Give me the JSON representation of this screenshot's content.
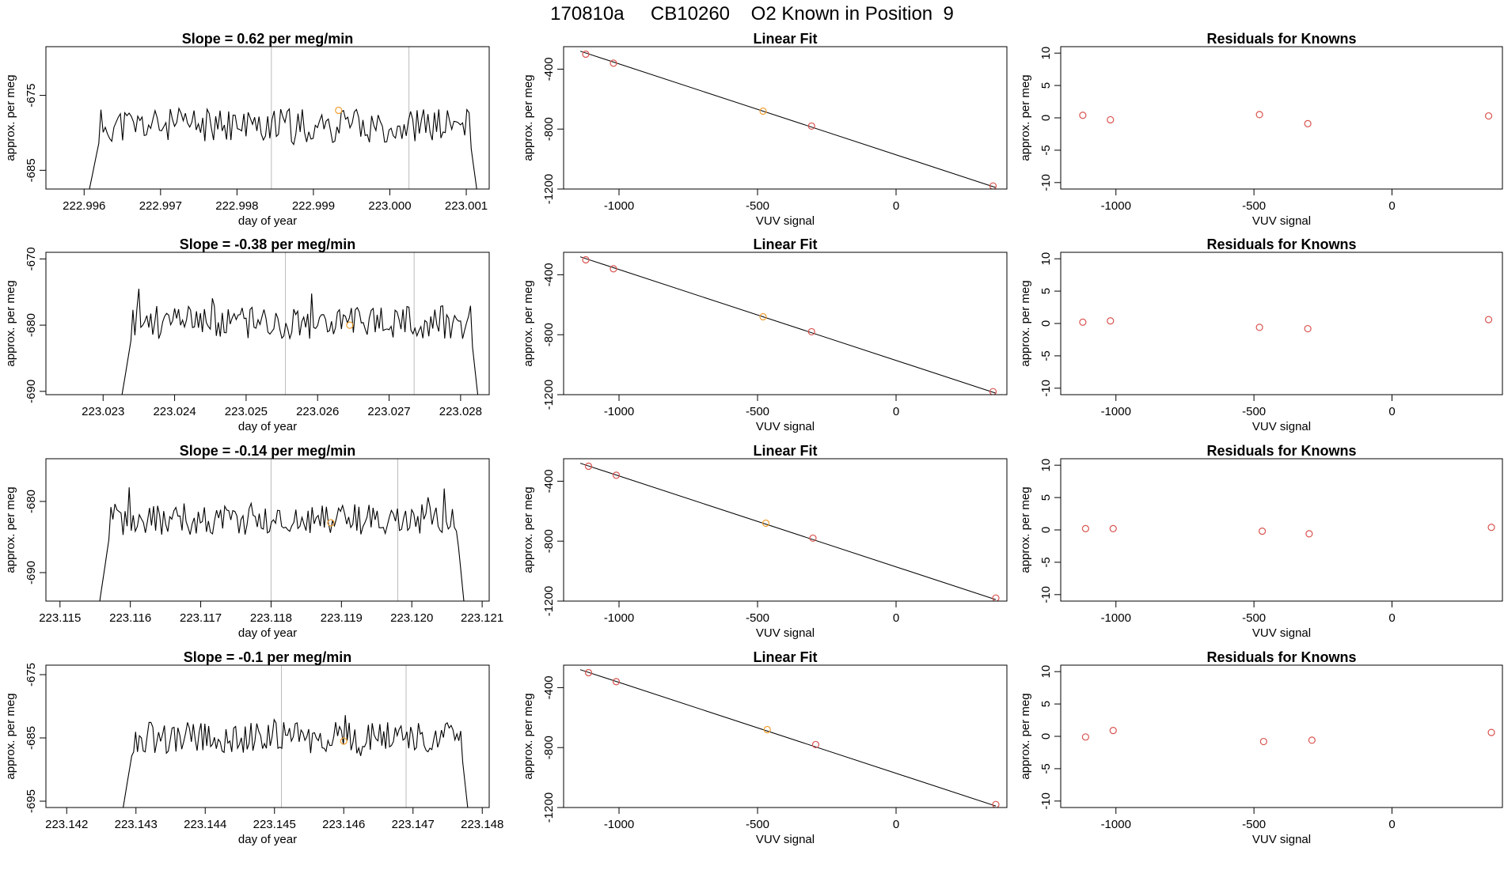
{
  "page": {
    "title": "170810a     CB10260    O2 Known in Position  9"
  },
  "colors": {
    "line": "#000000",
    "known": "#d9534f",
    "sample": "#f0a030",
    "grid": "#bbbbbb",
    "frame": "#000000"
  },
  "chart_data": {
    "type": "figure",
    "rows": [
      {
        "timeseries": {
          "type": "line",
          "title": "Slope =  0.62  per meg/min",
          "xlabel": "day of year",
          "ylabel": "approx. per meg",
          "xlim": [
            222.9955,
            223.0013
          ],
          "ylim": [
            -687.5,
            -668.5
          ],
          "xticks": [
            222.996,
            222.997,
            222.998,
            222.999,
            223.0,
            223.001
          ],
          "xtick_labels": [
            "222.996",
            "222.997",
            "222.998",
            "222.999",
            "223.000",
            "223.001"
          ],
          "yticks": [
            -675,
            -685
          ],
          "ytick_labels": [
            "-675",
            "-685"
          ],
          "vlines": [
            222.99845,
            223.00025
          ],
          "x_start": 222.99605,
          "x_end": 223.00115,
          "level": -679,
          "noise": 2.3,
          "seed": 11,
          "point": {
            "x": 222.99933,
            "y": -677
          }
        },
        "fit": {
          "type": "scatter",
          "title": "Linear Fit",
          "xlabel": "VUV signal",
          "ylabel": "approx. per meg",
          "xlim": [
            -1200,
            400
          ],
          "ylim": [
            -1200,
            -250
          ],
          "xticks": [
            -1000,
            -500,
            0
          ],
          "xtick_labels": [
            "-1000",
            "-500",
            "0"
          ],
          "yticks": [
            -400,
            -800,
            -1200
          ],
          "ytick_labels": [
            "-400",
            "-800",
            "-1200"
          ],
          "line": {
            "x1": -1140,
            "y1": -280,
            "x2": 360,
            "y2": -1190
          },
          "points": [
            {
              "x": -1120,
              "y": -300,
              "kind": "known"
            },
            {
              "x": -1020,
              "y": -360,
              "kind": "known"
            },
            {
              "x": -480,
              "y": -680,
              "kind": "sample"
            },
            {
              "x": -305,
              "y": -780,
              "kind": "known"
            },
            {
              "x": 350,
              "y": -1180,
              "kind": "known"
            }
          ]
        },
        "residuals": {
          "type": "scatter",
          "title": "Residuals for Knowns",
          "xlabel": "VUV signal",
          "ylabel": "approx. per meg",
          "xlim": [
            -1200,
            400
          ],
          "ylim": [
            -11,
            11
          ],
          "xticks": [
            -1000,
            -500,
            0
          ],
          "xtick_labels": [
            "-1000",
            "-500",
            "0"
          ],
          "yticks": [
            10,
            5,
            0,
            -5,
            -10
          ],
          "ytick_labels": [
            "10",
            "5",
            "0",
            "-5",
            "-10"
          ],
          "points": [
            {
              "x": -1120,
              "y": 0.4
            },
            {
              "x": -1020,
              "y": -0.3
            },
            {
              "x": -480,
              "y": 0.5
            },
            {
              "x": -305,
              "y": -0.9
            },
            {
              "x": 350,
              "y": 0.3
            }
          ]
        }
      },
      {
        "timeseries": {
          "type": "line",
          "title": "Slope =  -0.38  per meg/min",
          "xlabel": "day of year",
          "ylabel": "approx. per meg",
          "xlim": [
            223.0222,
            223.0284
          ],
          "ylim": [
            -690.5,
            -669
          ],
          "xticks": [
            223.023,
            223.024,
            223.025,
            223.026,
            223.027,
            223.028
          ],
          "xtick_labels": [
            "223.023",
            "223.024",
            "223.025",
            "223.026",
            "223.027",
            "223.028"
          ],
          "yticks": [
            -670,
            -680,
            -690
          ],
          "ytick_labels": [
            "-670",
            "-680",
            "-690"
          ],
          "vlines": [
            223.02555,
            223.02735
          ],
          "x_start": 223.02325,
          "x_end": 223.02825,
          "level": -679.5,
          "noise": 2.6,
          "seed": 23,
          "point": {
            "x": 223.02645,
            "y": -680
          }
        },
        "fit": {
          "type": "scatter",
          "title": "Linear Fit",
          "xlabel": "VUV signal",
          "ylabel": "approx. per meg",
          "xlim": [
            -1200,
            400
          ],
          "ylim": [
            -1200,
            -250
          ],
          "xticks": [
            -1000,
            -500,
            0
          ],
          "xtick_labels": [
            "-1000",
            "-500",
            "0"
          ],
          "yticks": [
            -400,
            -800,
            -1200
          ],
          "ytick_labels": [
            "-400",
            "-800",
            "-1200"
          ],
          "line": {
            "x1": -1140,
            "y1": -280,
            "x2": 360,
            "y2": -1190
          },
          "points": [
            {
              "x": -1120,
              "y": -300,
              "kind": "known"
            },
            {
              "x": -1020,
              "y": -360,
              "kind": "known"
            },
            {
              "x": -480,
              "y": -680,
              "kind": "sample"
            },
            {
              "x": -305,
              "y": -780,
              "kind": "known"
            },
            {
              "x": 350,
              "y": -1180,
              "kind": "known"
            }
          ]
        },
        "residuals": {
          "type": "scatter",
          "title": "Residuals for Knowns",
          "xlabel": "VUV signal",
          "ylabel": "approx. per meg",
          "xlim": [
            -1200,
            400
          ],
          "ylim": [
            -11,
            11
          ],
          "xticks": [
            -1000,
            -500,
            0
          ],
          "xtick_labels": [
            "-1000",
            "-500",
            "0"
          ],
          "yticks": [
            10,
            5,
            0,
            -5,
            -10
          ],
          "ytick_labels": [
            "10",
            "5",
            "0",
            "-5",
            "-10"
          ],
          "points": [
            {
              "x": -1120,
              "y": 0.2
            },
            {
              "x": -1020,
              "y": 0.4
            },
            {
              "x": -480,
              "y": -0.6
            },
            {
              "x": -305,
              "y": -0.8
            },
            {
              "x": 350,
              "y": 0.6
            }
          ]
        }
      },
      {
        "timeseries": {
          "type": "line",
          "title": "Slope =  -0.14  per meg/min",
          "xlabel": "day of year",
          "ylabel": "approx. per meg",
          "xlim": [
            223.1148,
            223.1211
          ],
          "ylim": [
            -694,
            -674
          ],
          "xticks": [
            223.115,
            223.116,
            223.117,
            223.118,
            223.119,
            223.12,
            223.121
          ],
          "xtick_labels": [
            "223.115",
            "223.116",
            "223.117",
            "223.118",
            "223.119",
            "223.120",
            "223.121"
          ],
          "yticks": [
            -680,
            -690
          ],
          "ytick_labels": [
            "-680",
            "-690"
          ],
          "vlines": [
            223.118,
            223.1198
          ],
          "x_start": 223.11555,
          "x_end": 223.12075,
          "level": -682.5,
          "noise": 2.3,
          "seed": 37,
          "point": {
            "x": 223.11885,
            "y": -683
          }
        },
        "fit": {
          "type": "scatter",
          "title": "Linear Fit",
          "xlabel": "VUV signal",
          "ylabel": "approx. per meg",
          "xlim": [
            -1200,
            400
          ],
          "ylim": [
            -1200,
            -250
          ],
          "xticks": [
            -1000,
            -500,
            0
          ],
          "xtick_labels": [
            "-1000",
            "-500",
            "0"
          ],
          "yticks": [
            -400,
            -800,
            -1200
          ],
          "ytick_labels": [
            "-400",
            "-800",
            "-1200"
          ],
          "line": {
            "x1": -1140,
            "y1": -280,
            "x2": 360,
            "y2": -1190
          },
          "points": [
            {
              "x": -1110,
              "y": -300,
              "kind": "known"
            },
            {
              "x": -1010,
              "y": -360,
              "kind": "known"
            },
            {
              "x": -470,
              "y": -680,
              "kind": "sample"
            },
            {
              "x": -300,
              "y": -780,
              "kind": "known"
            },
            {
              "x": 360,
              "y": -1180,
              "kind": "known"
            }
          ]
        },
        "residuals": {
          "type": "scatter",
          "title": "Residuals for Knowns",
          "xlabel": "VUV signal",
          "ylabel": "approx. per meg",
          "xlim": [
            -1200,
            400
          ],
          "ylim": [
            -11,
            11
          ],
          "xticks": [
            -1000,
            -500,
            0
          ],
          "xtick_labels": [
            "-1000",
            "-500",
            "0"
          ],
          "yticks": [
            10,
            5,
            0,
            -5,
            -10
          ],
          "ytick_labels": [
            "10",
            "5",
            "0",
            "-5",
            "-10"
          ],
          "points": [
            {
              "x": -1110,
              "y": 0.2
            },
            {
              "x": -1010,
              "y": 0.2
            },
            {
              "x": -470,
              "y": -0.2
            },
            {
              "x": -300,
              "y": -0.6
            },
            {
              "x": 360,
              "y": 0.4
            }
          ]
        }
      },
      {
        "timeseries": {
          "type": "line",
          "title": "Slope =  -0.1  per meg/min",
          "xlabel": "day of year",
          "ylabel": "approx. per meg",
          "xlim": [
            223.1417,
            223.1481
          ],
          "ylim": [
            -696,
            -673.5
          ],
          "xticks": [
            223.142,
            223.143,
            223.144,
            223.145,
            223.146,
            223.147,
            223.148
          ],
          "xtick_labels": [
            "223.142",
            "223.143",
            "223.144",
            "223.145",
            "223.146",
            "223.147",
            "223.148"
          ],
          "yticks": [
            -675,
            -685,
            -695
          ],
          "ytick_labels": [
            "-675",
            "-685",
            "-695"
          ],
          "vlines": [
            223.1451,
            223.1469
          ],
          "x_start": 223.1428,
          "x_end": 223.1478,
          "level": -685,
          "noise": 2.5,
          "seed": 53,
          "point": {
            "x": 223.146,
            "y": -685.5
          }
        },
        "fit": {
          "type": "scatter",
          "title": "Linear Fit",
          "xlabel": "VUV signal",
          "ylabel": "approx. per meg",
          "xlim": [
            -1200,
            400
          ],
          "ylim": [
            -1200,
            -250
          ],
          "xticks": [
            -1000,
            -500,
            0
          ],
          "xtick_labels": [
            "-1000",
            "-500",
            "0"
          ],
          "yticks": [
            -400,
            -800,
            -1200
          ],
          "ytick_labels": [
            "-400",
            "-800",
            "-1200"
          ],
          "line": {
            "x1": -1140,
            "y1": -280,
            "x2": 360,
            "y2": -1190
          },
          "points": [
            {
              "x": -1110,
              "y": -300,
              "kind": "known"
            },
            {
              "x": -1010,
              "y": -360,
              "kind": "known"
            },
            {
              "x": -465,
              "y": -680,
              "kind": "sample"
            },
            {
              "x": -290,
              "y": -780,
              "kind": "known"
            },
            {
              "x": 360,
              "y": -1180,
              "kind": "known"
            }
          ]
        },
        "residuals": {
          "type": "scatter",
          "title": "Residuals for Knowns",
          "xlabel": "VUV signal",
          "ylabel": "approx. per meg",
          "xlim": [
            -1200,
            400
          ],
          "ylim": [
            -11,
            11
          ],
          "xticks": [
            -1000,
            -500,
            0
          ],
          "xtick_labels": [
            "-1000",
            "-500",
            "0"
          ],
          "yticks": [
            10,
            5,
            0,
            -5,
            -10
          ],
          "ytick_labels": [
            "10",
            "5",
            "0",
            "-5",
            "-10"
          ],
          "points": [
            {
              "x": -1110,
              "y": -0.1
            },
            {
              "x": -1010,
              "y": 0.9
            },
            {
              "x": -465,
              "y": -0.8
            },
            {
              "x": -290,
              "y": -0.6
            },
            {
              "x": 360,
              "y": 0.6
            }
          ]
        }
      }
    ]
  }
}
